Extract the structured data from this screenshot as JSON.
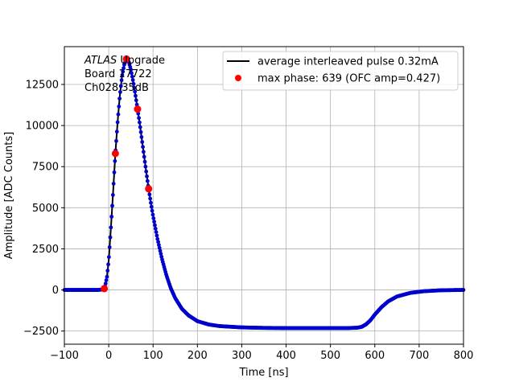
{
  "chart_data": {
    "type": "scatter",
    "title": "",
    "xlabel": "Time [ns]",
    "ylabel": "Amplitude [ADC Counts]",
    "xlim": [
      -100,
      800
    ],
    "ylim": [
      -3300,
      14800
    ],
    "xticks": [
      -100,
      0,
      100,
      200,
      300,
      400,
      500,
      600,
      700,
      800
    ],
    "yticks": [
      -2500,
      0,
      2500,
      5000,
      7500,
      10000,
      12500
    ],
    "grid": true,
    "legend_position": "top-right",
    "annotation": {
      "italic_part": "ATLAS",
      "rest_line1": " Upgrade",
      "line2": " Board 17722",
      "line3": " Ch028 35dB"
    },
    "series": [
      {
        "name": "average interleaved pulse 0.32mA",
        "kind": "line+markers",
        "line_color": "#000000",
        "marker_color": "#0000cc",
        "points": [
          [
            -100,
            0
          ],
          [
            -60,
            0
          ],
          [
            -25,
            0
          ],
          [
            -12,
            30
          ],
          [
            -8,
            250
          ],
          [
            -4,
            800
          ],
          [
            0,
            1800
          ],
          [
            5,
            3800
          ],
          [
            10,
            6000
          ],
          [
            15,
            8300
          ],
          [
            20,
            10200
          ],
          [
            25,
            11800
          ],
          [
            30,
            13000
          ],
          [
            35,
            13700
          ],
          [
            40,
            14050
          ],
          [
            45,
            13900
          ],
          [
            50,
            13400
          ],
          [
            55,
            12700
          ],
          [
            60,
            11900
          ],
          [
            65,
            11000
          ],
          [
            70,
            10100
          ],
          [
            75,
            9100
          ],
          [
            80,
            8100
          ],
          [
            85,
            7100
          ],
          [
            90,
            6150
          ],
          [
            95,
            5300
          ],
          [
            100,
            4500
          ],
          [
            110,
            3100
          ],
          [
            120,
            1900
          ],
          [
            130,
            900
          ],
          [
            140,
            100
          ],
          [
            150,
            -500
          ],
          [
            165,
            -1150
          ],
          [
            180,
            -1550
          ],
          [
            200,
            -1900
          ],
          [
            225,
            -2100
          ],
          [
            250,
            -2200
          ],
          [
            300,
            -2280
          ],
          [
            350,
            -2310
          ],
          [
            400,
            -2320
          ],
          [
            450,
            -2320
          ],
          [
            500,
            -2320
          ],
          [
            540,
            -2320
          ],
          [
            560,
            -2300
          ],
          [
            570,
            -2250
          ],
          [
            580,
            -2100
          ],
          [
            590,
            -1850
          ],
          [
            600,
            -1500
          ],
          [
            615,
            -1050
          ],
          [
            630,
            -700
          ],
          [
            650,
            -400
          ],
          [
            680,
            -180
          ],
          [
            710,
            -80
          ],
          [
            750,
            -20
          ],
          [
            800,
            0
          ]
        ]
      },
      {
        "name": "max phase: 639 (OFC amp=0.427)",
        "kind": "markers",
        "color": "#ff0000",
        "points": [
          [
            -10,
            80
          ],
          [
            15,
            8300
          ],
          [
            40,
            14050
          ],
          [
            65,
            11000
          ],
          [
            90,
            6150
          ]
        ]
      }
    ]
  }
}
